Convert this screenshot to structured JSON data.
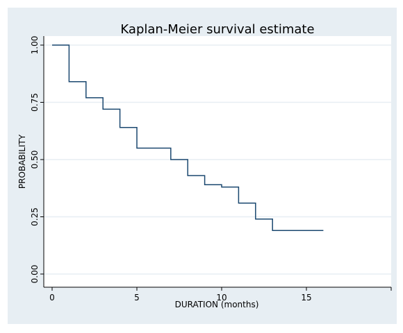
{
  "chart_data": {
    "type": "line",
    "title": "Kaplan-Meier survival estimate",
    "xlabel": "DURATION (months)",
    "ylabel": "PROBABILITY",
    "xlim": [
      0,
      20
    ],
    "ylim": [
      0,
      1
    ],
    "xticks": [
      0,
      5,
      10,
      15
    ],
    "yticks": [
      0.0,
      0.25,
      0.5,
      0.75,
      1.0
    ],
    "xtick_labels": [
      "0",
      "5",
      "10",
      "15"
    ],
    "ytick_labels": [
      "0.00",
      "0.25",
      "0.50",
      "0.75",
      "1.00"
    ],
    "grid": true,
    "series": [
      {
        "x": [
          0,
          1,
          2,
          3,
          4,
          5,
          7,
          8,
          9,
          10,
          11,
          12,
          13,
          16
        ],
        "y": [
          1.0,
          0.84,
          0.77,
          0.72,
          0.64,
          0.55,
          0.5,
          0.43,
          0.39,
          0.38,
          0.31,
          0.24,
          0.19,
          0.19
        ]
      }
    ]
  },
  "colors": {
    "background": "#e7eef3",
    "plot_area": "#ffffff",
    "line": "#1a476f",
    "grid": "#e7eef3",
    "text": "#000000"
  }
}
